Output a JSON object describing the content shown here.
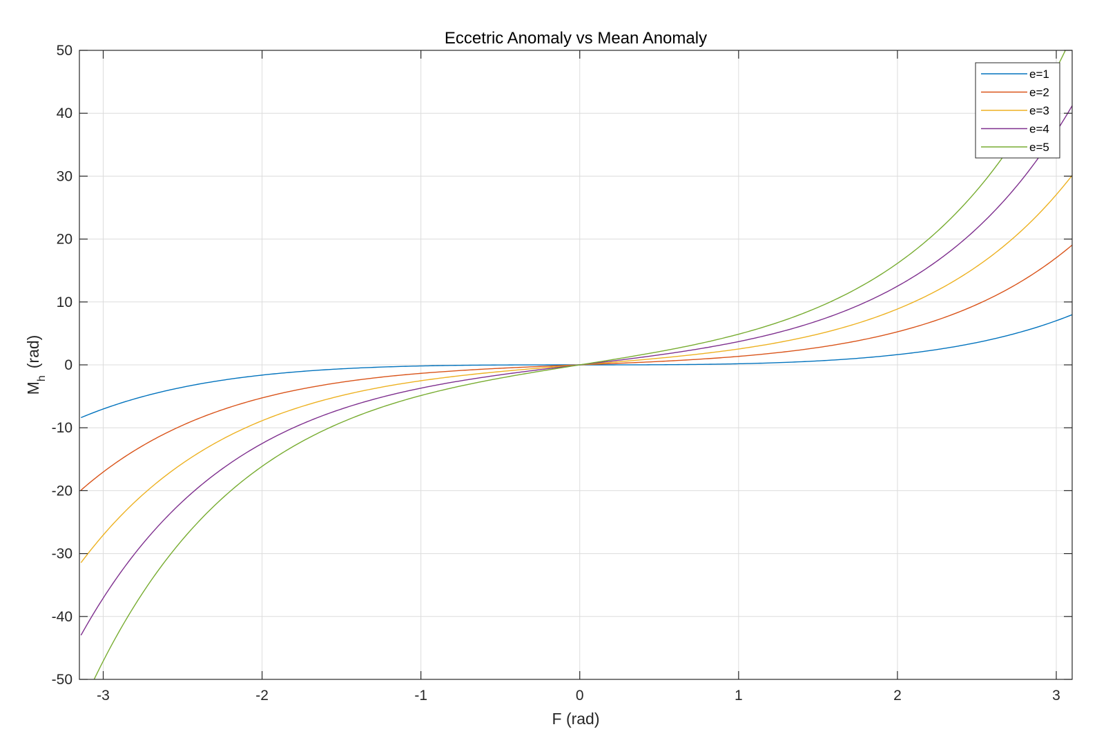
{
  "chart_data": {
    "type": "line",
    "title": "Eccetric Anomaly vs Mean Anomaly",
    "xlabel": "F (rad)",
    "ylabel_main": "M",
    "ylabel_sub": "h",
    "ylabel_unit": "(rad)",
    "xlim": [
      -3.15,
      3.1
    ],
    "ylim": [
      -50,
      50
    ],
    "xticks": [
      -3,
      -2,
      -1,
      0,
      1,
      2,
      3
    ],
    "yticks": [
      -50,
      -40,
      -30,
      -20,
      -10,
      0,
      10,
      20,
      30,
      40,
      50
    ],
    "grid": true,
    "legend_position": "top-right",
    "x_range": [
      -3.14,
      3.1
    ],
    "series": [
      {
        "name": "e=1",
        "e": 1,
        "color": "#0072BD"
      },
      {
        "name": "e=2",
        "e": 2,
        "color": "#D95319"
      },
      {
        "name": "e=3",
        "e": 3,
        "color": "#EDB120"
      },
      {
        "name": "e=4",
        "e": 4,
        "color": "#7E2F8E"
      },
      {
        "name": "e=5",
        "e": 5,
        "color": "#77AC30"
      }
    ]
  }
}
